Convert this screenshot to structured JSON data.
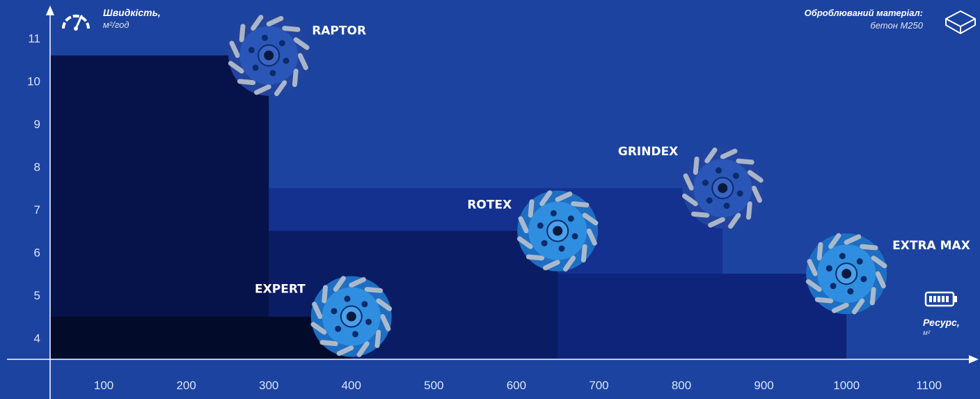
{
  "y_axis": {
    "title": "Швидкість,",
    "unit": "м²/год",
    "icon": "speedometer-icon"
  },
  "x_axis": {
    "title": "Ресурс,",
    "unit": "м²",
    "icon": "battery-icon"
  },
  "material": {
    "title": "Оброблюваний матеріал:",
    "value": "бетон М250",
    "icon": "concrete-block-icon"
  },
  "colors": {
    "background": "#1c43a0",
    "blocks": [
      "#030b2a",
      "#06134a",
      "#0a1c64",
      "#0e247a",
      "#143190"
    ],
    "disc_blue": "#2f8ee0",
    "disc_dark": "#2a56b8",
    "segment": "#b9c2cc"
  },
  "chart_data": {
    "type": "scatter",
    "xlabel": "Ресурс, м²",
    "ylabel": "Швидкість, м²/год",
    "xlim": [
      35,
      1150
    ],
    "ylim": [
      3.5,
      11.7
    ],
    "x_ticks": [
      "100",
      "200",
      "300",
      "400",
      "500",
      "600",
      "700",
      "800",
      "900",
      "1000",
      "1100"
    ],
    "y_ticks": [
      "4",
      "5",
      "6",
      "7",
      "8",
      "9",
      "10",
      "11"
    ],
    "points": [
      {
        "name": "RAPTOR",
        "x": 300,
        "y": 10.6,
        "style": "dark"
      },
      {
        "name": "EXPERT",
        "x": 400,
        "y": 4.5,
        "style": "light"
      },
      {
        "name": "ROTEX",
        "x": 650,
        "y": 6.5,
        "style": "light"
      },
      {
        "name": "GRINDEX",
        "x": 850,
        "y": 7.5,
        "style": "dark"
      },
      {
        "name": "EXTRA MAX",
        "x": 1000,
        "y": 5.5,
        "style": "light"
      }
    ]
  }
}
